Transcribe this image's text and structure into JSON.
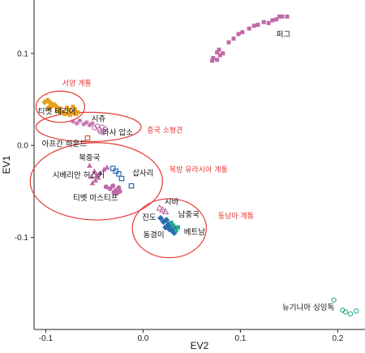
{
  "chart_data": {
    "type": "scatter",
    "xlabel": "EV2",
    "ylabel": "EV1",
    "xlim": [
      -0.112,
      0.228
    ],
    "ylim": [
      -0.2,
      0.158
    ],
    "x_ticks": [
      {
        "value": -0.1,
        "label": "-0.1"
      },
      {
        "value": 0.0,
        "label": "0.0"
      },
      {
        "value": 0.1,
        "label": "0.1"
      },
      {
        "value": 0.2,
        "label": "0.2"
      }
    ],
    "y_ticks": [
      {
        "value": 0.1,
        "label": "0.1"
      },
      {
        "value": 0.0,
        "label": "0.0"
      },
      {
        "value": -0.1,
        "label": "-0.1"
      }
    ],
    "grid": false,
    "series": [
      {
        "marker": "square",
        "color": "#c06aa8",
        "points": [
          [
            0.071,
            0.092
          ],
          [
            0.072,
            0.095
          ],
          [
            0.076,
            0.093
          ],
          [
            0.079,
            0.098
          ],
          [
            0.076,
            0.101
          ],
          [
            0.082,
            0.1
          ],
          [
            0.078,
            0.104
          ],
          [
            0.088,
            0.112
          ],
          [
            0.093,
            0.116
          ],
          [
            0.098,
            0.121
          ],
          [
            0.102,
            0.123
          ],
          [
            0.109,
            0.127
          ],
          [
            0.114,
            0.13
          ],
          [
            0.118,
            0.131
          ],
          [
            0.124,
            0.134
          ],
          [
            0.129,
            0.133
          ],
          [
            0.133,
            0.136
          ],
          [
            0.137,
            0.137
          ],
          [
            0.14,
            0.14
          ],
          [
            0.143,
            0.14
          ],
          [
            0.148,
            0.14
          ]
        ]
      },
      {
        "marker": "diamond",
        "color": "#e8a020",
        "points": [
          [
            -0.101,
            0.047
          ],
          [
            -0.098,
            0.049
          ],
          [
            -0.095,
            0.046
          ],
          [
            -0.091,
            0.044
          ],
          [
            -0.094,
            0.043
          ],
          [
            -0.097,
            0.041
          ],
          [
            -0.089,
            0.042
          ]
        ]
      },
      {
        "marker": "square",
        "color": "#e8a020",
        "points": [
          [
            -0.088,
            0.037
          ],
          [
            -0.085,
            0.04
          ],
          [
            -0.082,
            0.036
          ],
          [
            -0.078,
            0.041
          ],
          [
            -0.076,
            0.038
          ],
          [
            -0.073,
            0.035
          ],
          [
            -0.07,
            0.039
          ],
          [
            -0.072,
            0.042
          ],
          [
            -0.067,
            0.036
          ],
          [
            -0.075,
            0.033
          ],
          [
            -0.08,
            0.034
          ],
          [
            -0.069,
            0.034
          ],
          [
            -0.084,
            0.035
          ]
        ]
      },
      {
        "marker": "asterisk",
        "color": "#c06aa8",
        "points": [
          [
            -0.072,
            0.026
          ],
          [
            -0.068,
            0.024
          ],
          [
            -0.065,
            0.027
          ],
          [
            -0.061,
            0.023
          ],
          [
            -0.058,
            0.025
          ],
          [
            -0.055,
            0.022
          ],
          [
            -0.052,
            0.024
          ]
        ]
      },
      {
        "marker": "circle-open",
        "color": "#c06aa8",
        "points": [
          [
            -0.05,
            0.019
          ],
          [
            -0.047,
            0.021
          ],
          [
            -0.045,
            0.017
          ],
          [
            -0.042,
            0.02
          ],
          [
            -0.039,
            0.018
          ],
          [
            -0.044,
            0.015
          ],
          [
            -0.041,
            0.014
          ]
        ]
      },
      {
        "marker": "square-open",
        "color": "#e05020",
        "points": [
          [
            -0.057,
            0.008
          ]
        ]
      },
      {
        "marker": "triangle",
        "color": "#c06aa8",
        "points": [
          [
            -0.055,
            -0.022
          ],
          [
            -0.05,
            -0.028
          ],
          [
            -0.047,
            -0.032
          ],
          [
            -0.053,
            -0.034
          ],
          [
            -0.044,
            -0.03
          ],
          [
            -0.049,
            -0.038
          ],
          [
            -0.052,
            -0.041
          ],
          [
            -0.046,
            -0.035
          ],
          [
            -0.04,
            -0.026
          ],
          [
            -0.037,
            -0.024
          ]
        ]
      },
      {
        "marker": "circle",
        "color": "#c06aa8",
        "points": [
          [
            -0.038,
            -0.045
          ],
          [
            -0.034,
            -0.047
          ],
          [
            -0.031,
            -0.044
          ],
          [
            -0.028,
            -0.049
          ],
          [
            -0.025,
            -0.046
          ],
          [
            -0.03,
            -0.051
          ],
          [
            -0.027,
            -0.052
          ],
          [
            -0.024,
            -0.05
          ]
        ]
      },
      {
        "marker": "square-open",
        "color": "#2a6cb0",
        "points": [
          [
            -0.031,
            -0.025
          ],
          [
            -0.028,
            -0.028
          ],
          [
            -0.025,
            -0.031
          ],
          [
            -0.022,
            -0.036
          ],
          [
            -0.012,
            -0.044
          ]
        ]
      },
      {
        "marker": "triangle-open",
        "color": "#c06aa8",
        "points": [
          [
            0.017,
            -0.068
          ],
          [
            0.02,
            -0.07
          ],
          [
            0.023,
            -0.072
          ]
        ]
      },
      {
        "marker": "diamond",
        "color": "#2a6cb0",
        "points": [
          [
            0.018,
            -0.079
          ],
          [
            0.021,
            -0.083
          ],
          [
            0.024,
            -0.081
          ],
          [
            0.026,
            -0.086
          ],
          [
            0.023,
            -0.089
          ],
          [
            0.027,
            -0.091
          ],
          [
            0.03,
            -0.093
          ],
          [
            0.028,
            -0.088
          ],
          [
            0.032,
            -0.095
          ],
          [
            0.033,
            -0.09
          ]
        ]
      },
      {
        "marker": "square",
        "color": "#2aa890",
        "points": [
          [
            0.029,
            -0.084
          ],
          [
            0.031,
            -0.087
          ],
          [
            0.034,
            -0.092
          ],
          [
            0.036,
            -0.089
          ]
        ]
      },
      {
        "marker": "circle-open",
        "color": "#2aa890",
        "points": [
          [
            0.196,
            -0.168
          ],
          [
            0.205,
            -0.179
          ],
          [
            0.208,
            -0.181
          ],
          [
            0.213,
            -0.183
          ],
          [
            0.219,
            -0.18
          ]
        ]
      }
    ],
    "ellipses": [
      {
        "cx": -0.085,
        "cy": 0.042,
        "rx": 0.025,
        "ry": 0.017,
        "color": "#e53935"
      },
      {
        "cx": -0.056,
        "cy": 0.02,
        "rx": 0.054,
        "ry": 0.016,
        "color": "#e53935"
      },
      {
        "cx": -0.048,
        "cy": -0.039,
        "rx": 0.068,
        "ry": 0.042,
        "color": "#e53935"
      },
      {
        "cx": 0.027,
        "cy": -0.09,
        "rx": 0.038,
        "ry": 0.032,
        "color": "#e53935"
      }
    ],
    "annotations": [
      {
        "text": "퍼그",
        "x": 0.137,
        "y": 0.118,
        "color": "black"
      },
      {
        "text": "서양 계통",
        "x": -0.083,
        "y": 0.065,
        "color": "red"
      },
      {
        "text": "시쥬",
        "x": -0.053,
        "y": 0.026,
        "color": "black"
      },
      {
        "text": "티벳 테리어",
        "x": -0.108,
        "y": 0.034,
        "color": "black"
      },
      {
        "text": "중국 소형견",
        "x": 0.004,
        "y": 0.014,
        "color": "red"
      },
      {
        "text": "라사 압소",
        "x": -0.042,
        "y": 0.011,
        "color": "black"
      },
      {
        "text": "아프간 하운드",
        "x": -0.104,
        "y": -0.001,
        "color": "black"
      },
      {
        "text": "북중국",
        "x": -0.066,
        "y": -0.016,
        "color": "black"
      },
      {
        "text": "북방 유라시아 계통",
        "x": 0.027,
        "y": -0.029,
        "color": "red"
      },
      {
        "text": "삽사리",
        "x": -0.011,
        "y": -0.033,
        "color": "black"
      },
      {
        "text": "시베리안 허스키",
        "x": -0.093,
        "y": -0.035,
        "color": "black"
      },
      {
        "text": "티벳 마스티프",
        "x": -0.072,
        "y": -0.06,
        "color": "black"
      },
      {
        "text": "시바",
        "x": 0.022,
        "y": -0.064,
        "color": "black"
      },
      {
        "text": "진도",
        "x": -0.001,
        "y": -0.081,
        "color": "black"
      },
      {
        "text": "남중국",
        "x": 0.036,
        "y": -0.078,
        "color": "black"
      },
      {
        "text": "동남아 계통",
        "x": 0.077,
        "y": -0.079,
        "color": "red"
      },
      {
        "text": "베트남",
        "x": 0.042,
        "y": -0.097,
        "color": "black"
      },
      {
        "text": "동경이",
        "x": 0.0,
        "y": -0.1,
        "color": "black"
      },
      {
        "text": "뉴기니아 싱잉독",
        "x": 0.143,
        "y": -0.179,
        "color": "black"
      }
    ]
  }
}
